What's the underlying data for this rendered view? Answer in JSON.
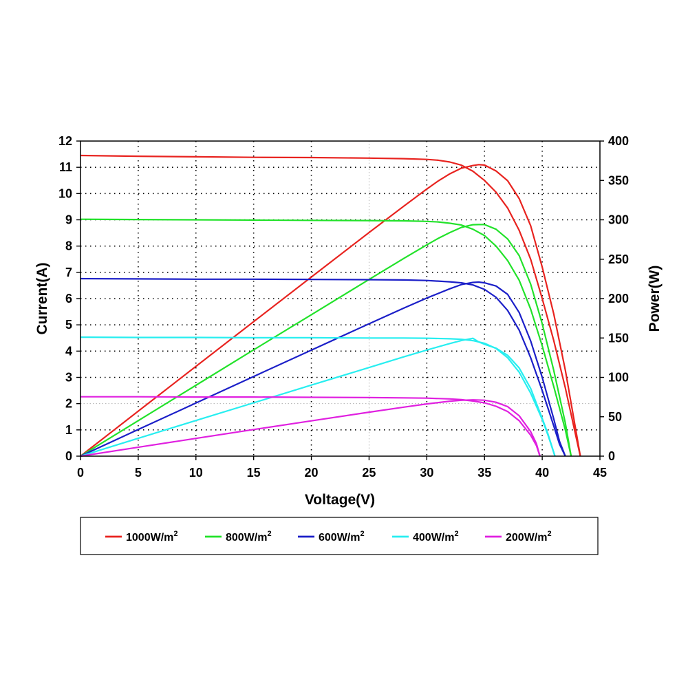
{
  "chart_data": {
    "type": "line",
    "xlabel": "Voltage(V)",
    "ylabel_left": "Current(A)",
    "ylabel_right": "Power(W)",
    "xlim": [
      0,
      45
    ],
    "ylim_left": [
      0,
      12
    ],
    "ylim_right": [
      0,
      400
    ],
    "x_ticks": [
      "0",
      "5",
      "10",
      "15",
      "20",
      "25",
      "30",
      "35",
      "40",
      "45"
    ],
    "y_left_ticks": [
      "0",
      "1",
      "2",
      "3",
      "4",
      "5",
      "6",
      "7",
      "8",
      "9",
      "10",
      "11",
      "12"
    ],
    "y_right_ticks": [
      "0",
      "50",
      "100",
      "150",
      "200",
      "250",
      "300",
      "350",
      "400"
    ],
    "grid": true,
    "legend_position": "bottom",
    "series": [
      {
        "name": "1000W/m",
        "superscript": "2",
        "color": "#e8231f",
        "current": {
          "x": [
            0,
            5,
            10,
            15,
            20,
            25,
            28,
            30,
            31,
            32,
            33,
            34,
            35,
            36,
            37,
            38,
            39,
            40,
            41,
            42,
            43,
            43.3
          ],
          "y": [
            11.45,
            11.42,
            11.4,
            11.38,
            11.37,
            11.35,
            11.33,
            11.3,
            11.27,
            11.2,
            11.08,
            10.85,
            10.5,
            10.05,
            9.45,
            8.6,
            7.5,
            6.0,
            4.4,
            2.6,
            0.6,
            0
          ]
        },
        "power": {
          "x": [
            0,
            5,
            10,
            15,
            20,
            25,
            28,
            30,
            31,
            32,
            33,
            34,
            34.5,
            35,
            36,
            37,
            38,
            39,
            40,
            41,
            42,
            43,
            43.3
          ],
          "y": [
            0,
            57.1,
            114,
            170.7,
            227.4,
            283.8,
            317.2,
            339,
            349.4,
            358.4,
            365.6,
            368.9,
            370,
            369.5,
            362,
            349.7,
            327,
            292.5,
            240,
            180.4,
            109.2,
            25.8,
            0
          ]
        }
      },
      {
        "name": "800W/m",
        "superscript": "2",
        "color": "#22e22a",
        "current": {
          "x": [
            0,
            5,
            10,
            15,
            20,
            25,
            28,
            30,
            31,
            32,
            33,
            34,
            35,
            36,
            37,
            38,
            39,
            40,
            41,
            42,
            42.5
          ],
          "y": [
            9.02,
            9.01,
            9.0,
            8.99,
            8.98,
            8.97,
            8.96,
            8.94,
            8.92,
            8.87,
            8.8,
            8.64,
            8.4,
            8.0,
            7.45,
            6.7,
            5.6,
            4.2,
            2.65,
            1.0,
            0
          ]
        },
        "power": {
          "x": [
            0,
            5,
            10,
            15,
            20,
            25,
            28,
            30,
            31,
            32,
            33,
            34,
            34.5,
            35,
            36,
            37,
            38,
            39,
            40,
            41,
            42,
            42.5
          ],
          "y": [
            0,
            45.1,
            90,
            134.9,
            179.6,
            224.3,
            250.9,
            268.2,
            276.5,
            283.8,
            290.4,
            293.8,
            294,
            294,
            288,
            275.7,
            254.6,
            218.4,
            168,
            108.7,
            42,
            0
          ]
        }
      },
      {
        "name": "600W/m",
        "superscript": "2",
        "color": "#1b1fc8",
        "current": {
          "x": [
            0,
            5,
            10,
            15,
            20,
            25,
            28,
            30,
            32,
            33,
            34,
            35,
            36,
            37,
            38,
            39,
            40,
            41,
            41.5,
            42
          ],
          "y": [
            6.76,
            6.75,
            6.74,
            6.74,
            6.73,
            6.72,
            6.71,
            6.69,
            6.64,
            6.6,
            6.52,
            6.35,
            6.05,
            5.55,
            4.8,
            3.75,
            2.5,
            1.15,
            0.45,
            0
          ]
        },
        "power": {
          "x": [
            0,
            5,
            10,
            15,
            20,
            25,
            28,
            30,
            32,
            33,
            34,
            34.5,
            35,
            36,
            37,
            38,
            39,
            40,
            41,
            41.5,
            42
          ],
          "y": [
            0,
            33.8,
            67.4,
            101.1,
            134.6,
            168,
            187.9,
            200.7,
            212.5,
            217.8,
            220.5,
            221,
            220,
            216,
            205.4,
            182.4,
            146.3,
            100,
            47.2,
            18.7,
            0
          ]
        }
      },
      {
        "name": "400W/m",
        "superscript": "2",
        "color": "#27eef0",
        "current": {
          "x": [
            0,
            5,
            10,
            15,
            20,
            25,
            28,
            30,
            32,
            33,
            34,
            35,
            36,
            37,
            38,
            39,
            40,
            40.5,
            41.1
          ],
          "y": [
            4.53,
            4.52,
            4.52,
            4.51,
            4.51,
            4.5,
            4.5,
            4.49,
            4.47,
            4.45,
            4.4,
            4.3,
            4.1,
            3.75,
            3.2,
            2.4,
            1.4,
            0.8,
            0
          ]
        },
        "power": {
          "x": [
            0,
            5,
            10,
            15,
            20,
            25,
            28,
            30,
            32,
            33,
            34,
            34.5,
            35,
            36,
            37,
            38,
            39,
            40,
            40.5,
            41.1
          ],
          "y": [
            0,
            22.6,
            45.2,
            67.7,
            90.2,
            112.5,
            126,
            134.7,
            143,
            146.8,
            149.6,
            145,
            142,
            137,
            128,
            112,
            86,
            48,
            28,
            0
          ]
        }
      },
      {
        "name": "200W/m",
        "superscript": "2",
        "color": "#e020e0",
        "current": {
          "x": [
            0,
            5,
            10,
            15,
            20,
            25,
            28,
            30,
            32,
            33,
            34,
            35,
            36,
            37,
            38,
            39,
            39.5,
            39.8
          ],
          "y": [
            2.26,
            2.26,
            2.25,
            2.25,
            2.24,
            2.23,
            2.22,
            2.21,
            2.18,
            2.15,
            2.1,
            2.03,
            1.9,
            1.7,
            1.35,
            0.8,
            0.4,
            0
          ]
        },
        "power": {
          "x": [
            0,
            5,
            10,
            15,
            20,
            25,
            28,
            30,
            32,
            33,
            34,
            35,
            36,
            37,
            38,
            39,
            39.5,
            39.8
          ],
          "y": [
            0,
            11.3,
            22.5,
            33.8,
            44.8,
            55.8,
            62.2,
            66.3,
            69.8,
            70.95,
            71.4,
            71,
            68.4,
            62.9,
            51.3,
            31.2,
            15.8,
            0
          ]
        }
      }
    ]
  }
}
